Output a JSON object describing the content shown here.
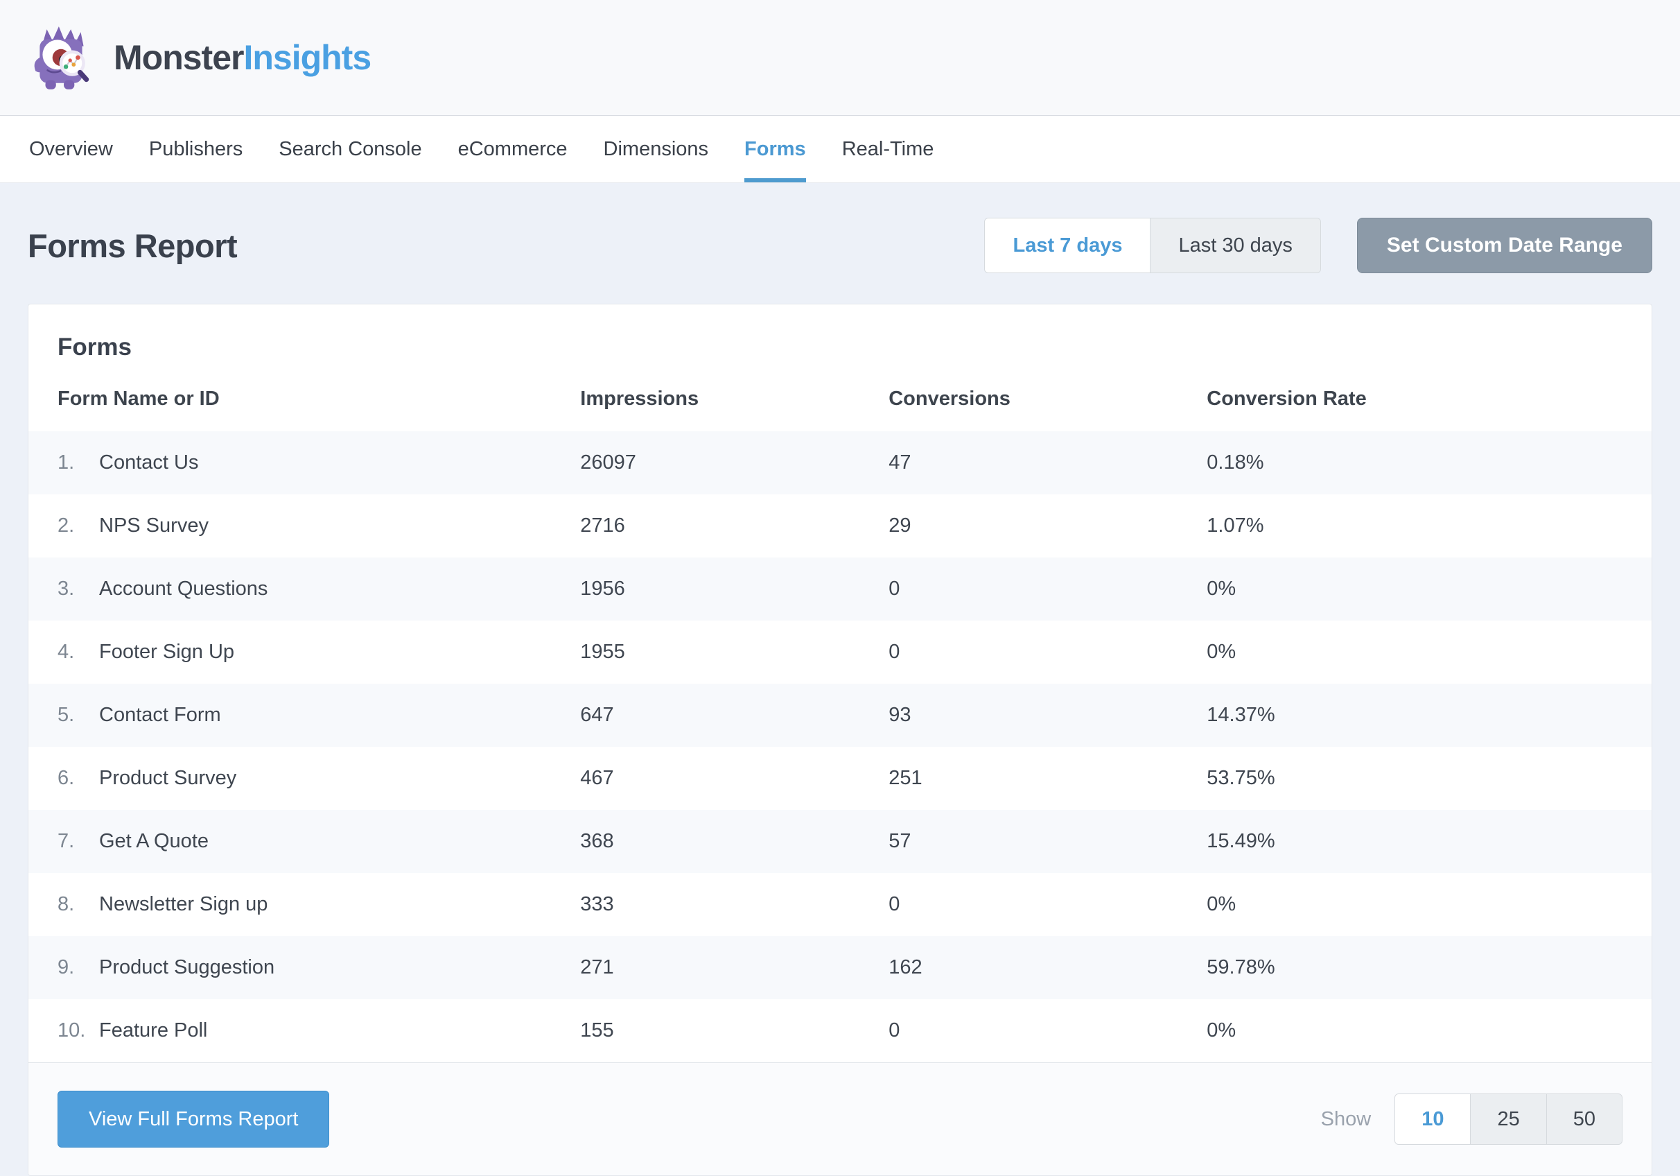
{
  "brand": {
    "name_primary": "Monster",
    "name_secondary": "Insights",
    "mascot_icon": "monster-with-magnifying-glass"
  },
  "nav": {
    "items": [
      {
        "label": "Overview",
        "active": false
      },
      {
        "label": "Publishers",
        "active": false
      },
      {
        "label": "Search Console",
        "active": false
      },
      {
        "label": "eCommerce",
        "active": false
      },
      {
        "label": "Dimensions",
        "active": false
      },
      {
        "label": "Forms",
        "active": true
      },
      {
        "label": "Real-Time",
        "active": false
      }
    ]
  },
  "page": {
    "title": "Forms Report"
  },
  "date_range": {
    "options": [
      {
        "label": "Last 7 days",
        "active": true
      },
      {
        "label": "Last 30 days",
        "active": false
      }
    ],
    "custom_button_label": "Set Custom Date Range"
  },
  "forms_card": {
    "title": "Forms",
    "table": {
      "columns": [
        "Form Name or ID",
        "Impressions",
        "Conversions",
        "Conversion Rate"
      ],
      "rows": [
        {
          "rank": "1.",
          "name": "Contact Us",
          "impressions": "26097",
          "conversions": "47",
          "conversion_rate": "0.18%"
        },
        {
          "rank": "2.",
          "name": "NPS Survey",
          "impressions": "2716",
          "conversions": "29",
          "conversion_rate": "1.07%"
        },
        {
          "rank": "3.",
          "name": "Account Questions",
          "impressions": "1956",
          "conversions": "0",
          "conversion_rate": "0%"
        },
        {
          "rank": "4.",
          "name": "Footer Sign Up",
          "impressions": "1955",
          "conversions": "0",
          "conversion_rate": "0%"
        },
        {
          "rank": "5.",
          "name": "Contact Form",
          "impressions": "647",
          "conversions": "93",
          "conversion_rate": "14.37%"
        },
        {
          "rank": "6.",
          "name": "Product Survey",
          "impressions": "467",
          "conversions": "251",
          "conversion_rate": "53.75%"
        },
        {
          "rank": "7.",
          "name": "Get A Quote",
          "impressions": "368",
          "conversions": "57",
          "conversion_rate": "15.49%"
        },
        {
          "rank": "8.",
          "name": "Newsletter Sign up",
          "impressions": "333",
          "conversions": "0",
          "conversion_rate": "0%"
        },
        {
          "rank": "9.",
          "name": "Product Suggestion",
          "impressions": "271",
          "conversions": "162",
          "conversion_rate": "59.78%"
        },
        {
          "rank": "10.",
          "name": "Feature Poll",
          "impressions": "155",
          "conversions": "0",
          "conversion_rate": "0%"
        }
      ]
    },
    "footer": {
      "view_report_label": "View Full Forms Report",
      "show_label": "Show",
      "page_sizes": [
        {
          "label": "10",
          "active": true
        },
        {
          "label": "25",
          "active": false
        },
        {
          "label": "50",
          "active": false
        }
      ]
    }
  },
  "colors": {
    "accent_blue": "#4e9bd3",
    "primary_button": "#4f9edb",
    "slate_button": "#8c9aa8",
    "page_background": "#edf1f8",
    "row_stripe": "#f7f9fc"
  }
}
